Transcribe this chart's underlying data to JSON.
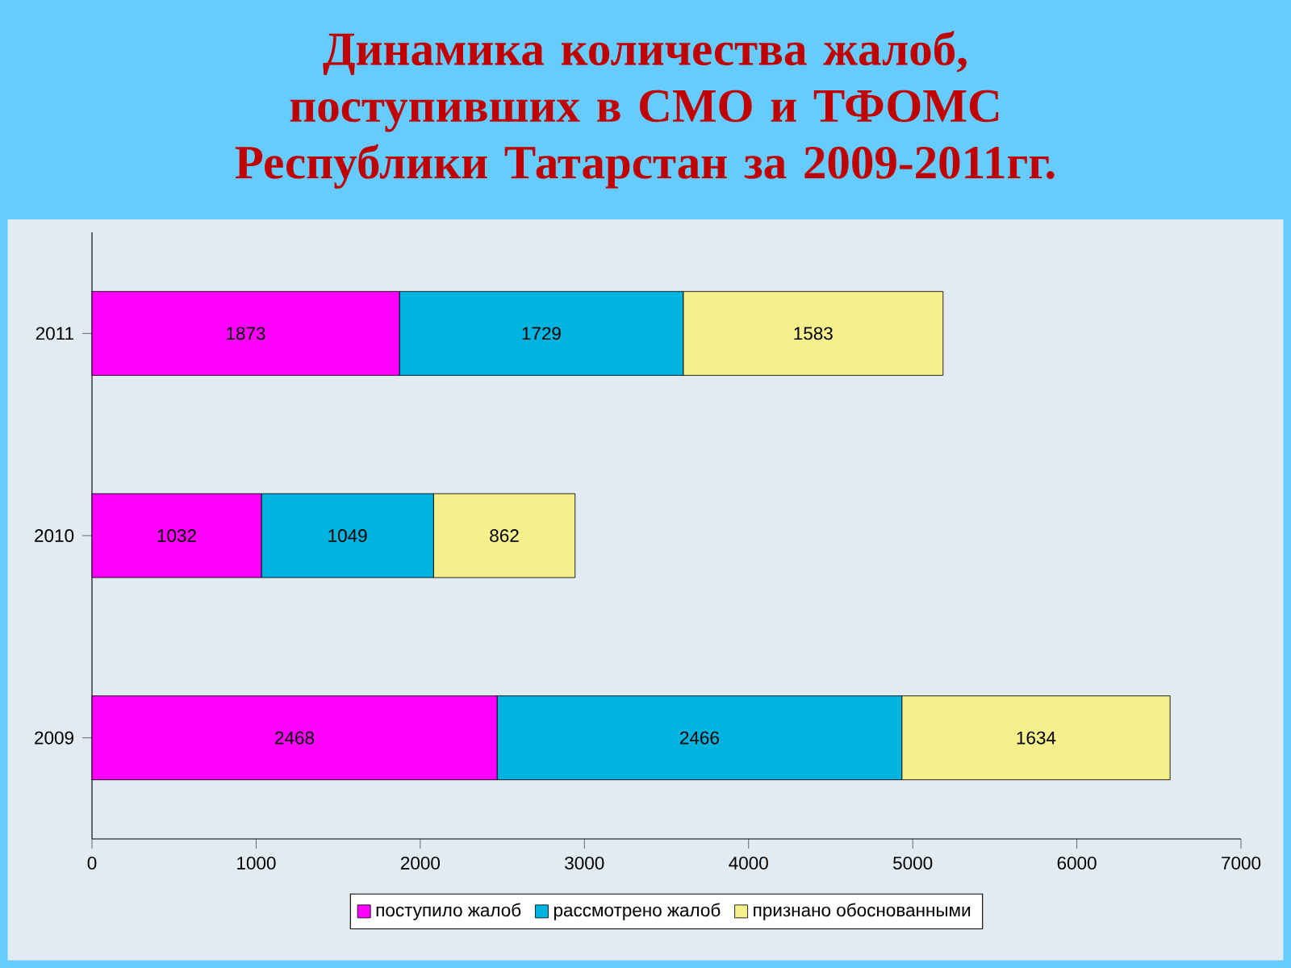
{
  "chart_data": {
    "type": "bar",
    "orientation": "horizontal",
    "stacked": true,
    "title": "Динамика количества жалоб, поступивших в СМО и ТФОМС Республики Татарстан за 2009-2011гг.",
    "categories": [
      "2011",
      "2010",
      "2009"
    ],
    "series": [
      {
        "name": "поступило жалоб",
        "color": "#ff00ff",
        "values": [
          1873,
          1032,
          2468
        ]
      },
      {
        "name": "рассмотрено жалоб",
        "color": "#00b4e0",
        "values": [
          1729,
          1049,
          2466
        ]
      },
      {
        "name": "признано обоснованными",
        "color": "#f5f08c",
        "values": [
          1583,
          862,
          1634
        ]
      }
    ],
    "xlim": [
      0,
      7000
    ],
    "xticks": [
      0,
      1000,
      2000,
      3000,
      4000,
      5000,
      6000,
      7000
    ],
    "data_labels": true,
    "legend": "bottom",
    "grid": false
  }
}
